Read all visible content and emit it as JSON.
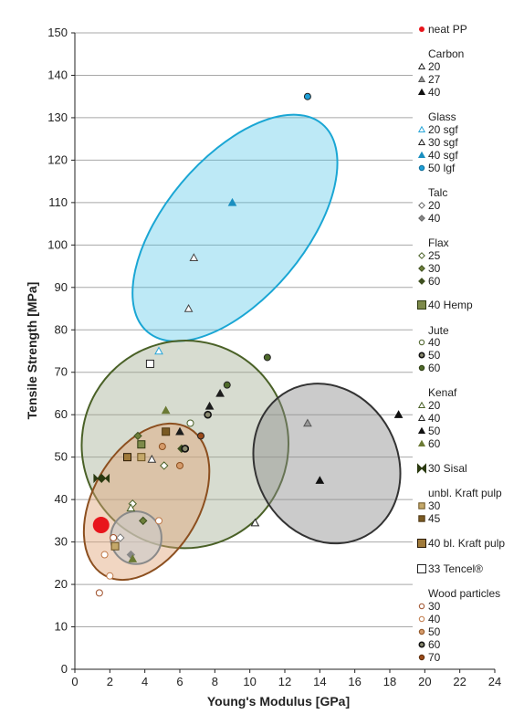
{
  "chart_data": {
    "type": "scatter",
    "xlabel": "Young's Modulus [GPa]",
    "ylabel": "Tensile Strength [MPa]",
    "xlim": [
      0,
      24
    ],
    "ylim": [
      0,
      150
    ],
    "xticks": [
      0,
      2,
      4,
      6,
      8,
      10,
      12,
      14,
      16,
      18,
      20,
      22,
      24
    ],
    "yticks": [
      0,
      10,
      20,
      30,
      40,
      50,
      60,
      70,
      80,
      90,
      100,
      110,
      120,
      130,
      140,
      150
    ],
    "grid": "horizontal",
    "legend_position": "right",
    "ellipses": [
      {
        "group": "glass",
        "cx": 9.15,
        "cy": 104,
        "rx": 4.0,
        "ry": 32,
        "angle_deg": 40,
        "fill": "#42c1e6",
        "stroke": "#1aa6d4",
        "opacity": 0.35
      },
      {
        "group": "natural-fibres",
        "cx": 6.3,
        "cy": 53,
        "rx": 5.9,
        "ry": 24.5,
        "angle_deg": 30,
        "fill": "#9aa78a",
        "stroke": "#4a6127",
        "opacity": 0.4
      },
      {
        "group": "wood-particles",
        "cx": 4.1,
        "cy": 39.5,
        "rx": 3.05,
        "ry": 20,
        "angle_deg": 30,
        "fill": "#e0a377",
        "stroke": "#8c4f1f",
        "opacity": 0.45
      },
      {
        "group": "carbon",
        "cx": 14.4,
        "cy": 48.5,
        "rx": 4.7,
        "ry": 16.7,
        "angle_deg": 62,
        "fill": "#8c8c8c",
        "stroke": "#333333",
        "opacity": 0.45
      },
      {
        "group": "pulp",
        "cx": 3.5,
        "cy": 31,
        "rx": 1.45,
        "ry": 6.2,
        "angle_deg": 0,
        "fill": "#c9c9c9",
        "stroke": "#8a8a8a",
        "opacity": 0.6
      }
    ],
    "series": [
      {
        "name": "neat PP",
        "group": "neat PP",
        "marker": "big-dot",
        "color": "#e8151c",
        "points": [
          [
            1.5,
            34
          ]
        ]
      },
      {
        "name": "20",
        "group": "Carbon",
        "marker": "tri-open",
        "color": "#222222",
        "points": [
          [
            10.3,
            34.5
          ]
        ]
      },
      {
        "name": "27",
        "group": "Carbon",
        "marker": "tri-gray",
        "color": "#888888",
        "points": [
          [
            13.3,
            58
          ]
        ]
      },
      {
        "name": "40",
        "group": "Carbon",
        "marker": "tri-filled",
        "color": "#111111",
        "points": [
          [
            14,
            44.5
          ],
          [
            18.5,
            60
          ]
        ]
      },
      {
        "name": "20 sgf",
        "group": "Glass",
        "marker": "tri-open",
        "color": "#29a6d8",
        "points": [
          [
            4.8,
            75
          ]
        ]
      },
      {
        "name": "30 sgf",
        "group": "Glass",
        "marker": "tri-open",
        "color": "#444444",
        "points": [
          [
            6.8,
            97
          ],
          [
            6.5,
            85
          ]
        ]
      },
      {
        "name": "40 sgf",
        "group": "Glass",
        "marker": "tri-filled",
        "color": "#1a8fc0",
        "points": [
          [
            9.0,
            110
          ]
        ]
      },
      {
        "name": "50 lgf",
        "group": "Glass",
        "marker": "circle-filled",
        "color": "#1e9fd6",
        "points": [
          [
            13.3,
            135
          ]
        ]
      },
      {
        "name": "20",
        "group": "Talc",
        "marker": "diamond-open",
        "color": "#777777",
        "points": [
          [
            2.6,
            31
          ]
        ]
      },
      {
        "name": "40",
        "group": "Talc",
        "marker": "diamond-filled",
        "color": "#888888",
        "points": [
          [
            3.2,
            27
          ]
        ]
      },
      {
        "name": "25",
        "group": "Flax",
        "marker": "diamond-open",
        "color": "#4a6127",
        "points": [
          [
            3.3,
            39
          ],
          [
            5.1,
            48
          ]
        ]
      },
      {
        "name": "30",
        "group": "Flax",
        "marker": "diamond-olive",
        "color": "#6d7f3a",
        "points": [
          [
            3.6,
            55
          ],
          [
            3.9,
            35
          ]
        ]
      },
      {
        "name": "60",
        "group": "Flax",
        "marker": "diamond-filled",
        "color": "#3f5020",
        "points": [
          [
            6.1,
            52
          ]
        ]
      },
      {
        "name": "40 Hemp",
        "group": "Hemp",
        "marker": "square-olive",
        "color": "#4a5a27",
        "points": [
          [
            3.8,
            53
          ]
        ]
      },
      {
        "name": "40",
        "group": "Jute",
        "marker": "circle-open",
        "color": "#4a6127",
        "points": [
          [
            6.6,
            58
          ]
        ]
      },
      {
        "name": "50",
        "group": "Jute",
        "marker": "circle-ring",
        "color": "#2b3a10",
        "points": [
          [
            7.6,
            60
          ],
          [
            6.3,
            52
          ]
        ]
      },
      {
        "name": "60",
        "group": "Jute",
        "marker": "circle-filled",
        "color": "#4e6a2a",
        "points": [
          [
            8.7,
            67
          ],
          [
            11.0,
            73.5
          ]
        ]
      },
      {
        "name": "20",
        "group": "Kenaf",
        "marker": "tri-open",
        "color": "#4a6127",
        "points": [
          [
            3.2,
            38
          ]
        ]
      },
      {
        "name": "40",
        "group": "Kenaf",
        "marker": "tri-open",
        "color": "#333333",
        "points": [
          [
            4.4,
            49.5
          ]
        ]
      },
      {
        "name": "50",
        "group": "Kenaf",
        "marker": "tri-filled",
        "color": "#1c1c1c",
        "points": [
          [
            6.0,
            56
          ],
          [
            7.7,
            62
          ],
          [
            8.3,
            65
          ]
        ]
      },
      {
        "name": "60",
        "group": "Kenaf",
        "marker": "tri-olive",
        "color": "#6b7a34",
        "points": [
          [
            5.2,
            61
          ],
          [
            3.3,
            26
          ]
        ]
      },
      {
        "name": "30 Sisal",
        "group": "Sisal",
        "marker": "bowtie",
        "color": "#2b3a10",
        "points": [
          [
            1.3,
            45
          ],
          [
            1.75,
            45
          ]
        ]
      },
      {
        "name": "30",
        "group": "unbl. Kraft pulp",
        "marker": "square-tan",
        "color": "#b59a5a",
        "points": [
          [
            3.8,
            50
          ],
          [
            2.3,
            29
          ]
        ]
      },
      {
        "name": "45",
        "group": "unbl. Kraft pulp",
        "marker": "square-brown",
        "color": "#7a5a23",
        "points": [
          [
            5.2,
            56
          ]
        ]
      },
      {
        "name": "40 bl. Kraft pulp",
        "group": "bl. Kraft pulp",
        "marker": "square-dark",
        "color": "#8a6a2a",
        "points": [
          [
            3.0,
            50
          ]
        ]
      },
      {
        "name": "33 Tencel®",
        "group": "Tencel",
        "marker": "square-open",
        "color": "#222222",
        "points": [
          [
            4.3,
            72
          ]
        ]
      },
      {
        "name": "30",
        "group": "Wood particles",
        "marker": "circle-open",
        "color": "#a0522d",
        "points": [
          [
            1.4,
            18
          ],
          [
            2.2,
            31
          ]
        ]
      },
      {
        "name": "40",
        "group": "Wood particles",
        "marker": "circle-open",
        "color": "#c07a4a",
        "points": [
          [
            1.7,
            27
          ],
          [
            2.0,
            22
          ],
          [
            4.8,
            35
          ]
        ]
      },
      {
        "name": "50",
        "group": "Wood particles",
        "marker": "circle-tan",
        "color": "#d49a6a",
        "points": [
          [
            5.0,
            52.5
          ],
          [
            6.0,
            48
          ]
        ]
      },
      {
        "name": "60",
        "group": "Wood particles",
        "marker": "circle-ring",
        "color": "#5a3010",
        "points": [
          [
            6.3,
            52
          ]
        ]
      },
      {
        "name": "70",
        "group": "Wood particles",
        "marker": "circle-filled",
        "color": "#9a4a1a",
        "points": [
          [
            7.2,
            55
          ]
        ]
      }
    ],
    "legend": [
      {
        "heading": "",
        "items": [
          {
            "label": "neat PP",
            "marker": "dot-red"
          }
        ]
      },
      {
        "heading": "Carbon",
        "items": [
          {
            "label": "20",
            "marker": "tri-open"
          },
          {
            "label": "27",
            "marker": "tri-gray"
          },
          {
            "label": "40",
            "marker": "tri-filled"
          }
        ]
      },
      {
        "heading": "Glass",
        "items": [
          {
            "label": "20 sgf",
            "marker": "tri-open-blue"
          },
          {
            "label": "30 sgf",
            "marker": "tri-open"
          },
          {
            "label": "40 sgf",
            "marker": "tri-filled-blue"
          },
          {
            "label": "50 lgf",
            "marker": "circle-blue"
          }
        ]
      },
      {
        "heading": "Talc",
        "items": [
          {
            "label": "20",
            "marker": "diamond-open"
          },
          {
            "label": "40",
            "marker": "diamond-filled-gray"
          }
        ]
      },
      {
        "heading": "Flax",
        "items": [
          {
            "label": "25",
            "marker": "diamond-open-olive"
          },
          {
            "label": "30",
            "marker": "diamond-olive"
          },
          {
            "label": "60",
            "marker": "diamond-filled-dark"
          }
        ]
      },
      {
        "heading": "",
        "items": [
          {
            "label": "40 Hemp",
            "marker": "square-olive"
          }
        ]
      },
      {
        "heading": "Jute",
        "items": [
          {
            "label": "40",
            "marker": "circle-open-olive"
          },
          {
            "label": "50",
            "marker": "circle-ring"
          },
          {
            "label": "60",
            "marker": "circle-olive"
          }
        ]
      },
      {
        "heading": "Kenaf",
        "items": [
          {
            "label": "20",
            "marker": "tri-open-olive"
          },
          {
            "label": "40",
            "marker": "tri-open"
          },
          {
            "label": "50",
            "marker": "tri-filled"
          },
          {
            "label": "60",
            "marker": "tri-olive"
          }
        ]
      },
      {
        "heading": "",
        "items": [
          {
            "label": "30 Sisal",
            "marker": "bowtie"
          }
        ]
      },
      {
        "heading": "unbl. Kraft pulp",
        "items": [
          {
            "label": "30",
            "marker": "square-tan"
          },
          {
            "label": "45",
            "marker": "square-brown"
          }
        ]
      },
      {
        "heading": "",
        "items": [
          {
            "label": "40 bl. Kraft pulp",
            "marker": "square-dark"
          }
        ]
      },
      {
        "heading": "",
        "items": [
          {
            "label": "33 Tencel®",
            "marker": "square-open"
          }
        ]
      },
      {
        "heading": "Wood particles",
        "items": [
          {
            "label": "30",
            "marker": "circle-open-brown"
          },
          {
            "label": "40",
            "marker": "circle-open-tan"
          },
          {
            "label": "50",
            "marker": "circle-tan"
          },
          {
            "label": "60",
            "marker": "circle-ring"
          },
          {
            "label": "70",
            "marker": "circle-brown"
          }
        ]
      }
    ]
  }
}
